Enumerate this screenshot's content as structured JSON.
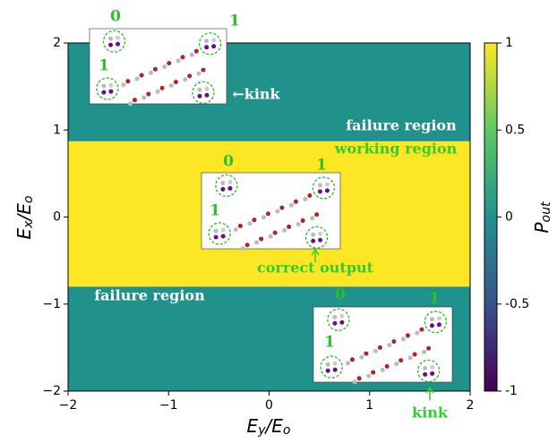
{
  "chart_data": {
    "type": "region",
    "xlabel": [
      "E",
      "y",
      "/E",
      "o"
    ],
    "ylabel": [
      "E",
      "x",
      "/E",
      "o"
    ],
    "xlim": [
      -2,
      2
    ],
    "ylim": [
      -2,
      2
    ],
    "xticks": [
      {
        "value": -2,
        "label": "−2"
      },
      {
        "value": -1,
        "label": "−1"
      },
      0,
      1,
      2
    ],
    "yticks": [
      {
        "value": -2,
        "label": "−2"
      },
      {
        "value": -1,
        "label": "−1"
      },
      0,
      1,
      2
    ],
    "colormap": [
      "#440154",
      "#3b528b",
      "#21918c",
      "#5ec962",
      "#fde725"
    ],
    "clim": [
      -1,
      1
    ],
    "cticks": [
      {
        "value": -1,
        "label": "-1"
      },
      {
        "value": -0.5,
        "label": "-0.5"
      },
      0,
      0.5,
      1
    ],
    "clabel": [
      "P",
      "out"
    ],
    "regions": [
      {
        "label": "failure region",
        "y_range": [
          0.87,
          2
        ],
        "value": 0,
        "color": "#21918c"
      },
      {
        "label": "working region",
        "y_range": [
          -0.8,
          0.87
        ],
        "value": 1,
        "color": "#fde725"
      },
      {
        "label": "failure region",
        "y_range": [
          -2,
          -0.8
        ],
        "value": 0,
        "color": "#21918c"
      }
    ],
    "insets": [
      {
        "labels": [
          "0",
          "1",
          "1"
        ],
        "note": "←kink"
      },
      {
        "labels": [
          "0",
          "1",
          "1"
        ],
        "note": "correct output"
      },
      {
        "labels": [
          "0",
          "1",
          "1"
        ],
        "note": "kink"
      }
    ]
  }
}
